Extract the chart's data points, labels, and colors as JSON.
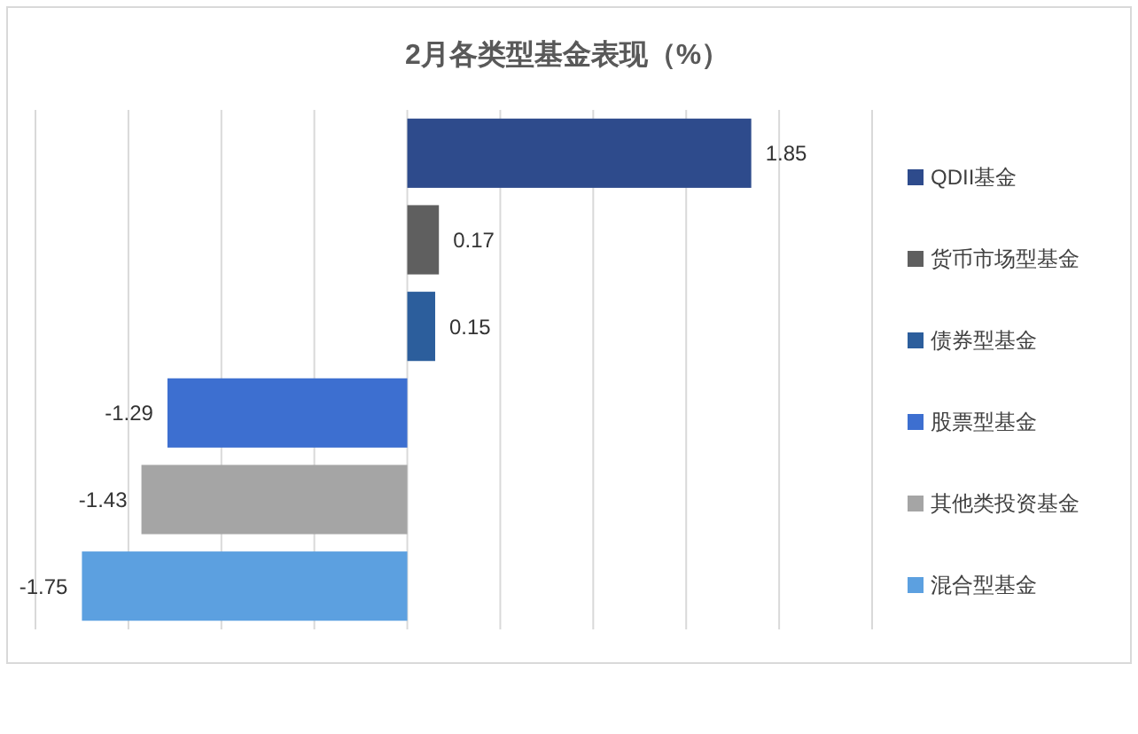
{
  "chart_data": {
    "type": "bar",
    "orientation": "horizontal",
    "stacked": true,
    "title": "2月各类型基金表现（%）",
    "categories": [
      null,
      null,
      null,
      null,
      null,
      null
    ],
    "series": [
      {
        "name": "QDII基金",
        "color": "#2e4b8c",
        "values": [
          1.85,
          null,
          null,
          null,
          null,
          null
        ]
      },
      {
        "name": "货币市场型基金",
        "color": "#5f5f5f",
        "values": [
          null,
          0.17,
          null,
          null,
          null,
          null
        ]
      },
      {
        "name": "债券型基金",
        "color": "#2c5e9c",
        "values": [
          null,
          null,
          0.15,
          null,
          null,
          null
        ]
      },
      {
        "name": "股票型基金",
        "color": "#3d6fd0",
        "values": [
          null,
          null,
          null,
          -1.29,
          null,
          null
        ]
      },
      {
        "name": "其他类投资基金",
        "color": "#a5a5a5",
        "values": [
          null,
          null,
          null,
          null,
          -1.43,
          null
        ]
      },
      {
        "name": "混合型基金",
        "color": "#5ca0e0",
        "values": [
          null,
          null,
          null,
          null,
          null,
          -1.75
        ]
      }
    ],
    "xlim": [
      -2,
      2.5
    ],
    "xticks": [
      {
        "value": -2,
        "label": null
      },
      {
        "value": -1.5,
        "label": null
      },
      {
        "value": -1,
        "label": null
      },
      {
        "value": -0.5,
        "label": null
      },
      {
        "value": 0,
        "label": null
      },
      {
        "value": 0.5,
        "label": null
      },
      {
        "value": 1,
        "label": null
      },
      {
        "value": 1.5,
        "label": null
      },
      {
        "value": 2,
        "label": null
      },
      {
        "value": 2.5,
        "label": null
      }
    ],
    "grid": "x",
    "legend": "right",
    "data_labels": true
  }
}
